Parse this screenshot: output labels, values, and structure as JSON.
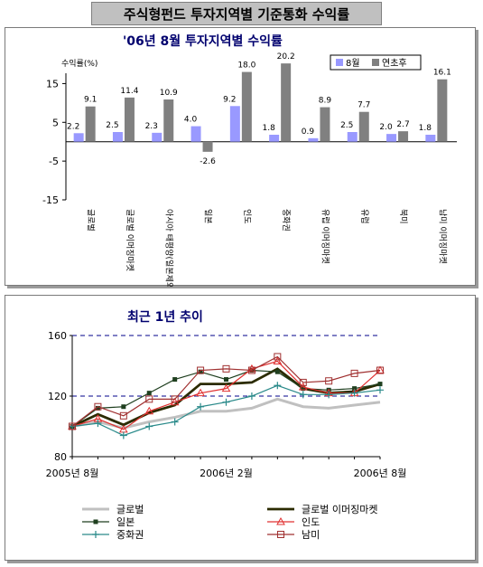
{
  "page_title": "주식형펀드 투자지역별 기준통화 수익률",
  "colors": {
    "aug": "#9999ff",
    "ytd": "#808080",
    "chart2_title": "#00006e",
    "chart1_title": "#00006e"
  },
  "chart_data": [
    {
      "type": "bar",
      "title": "'06년 8월 투자지역별 수익률",
      "ylabel": "수익률(%)",
      "ylim": [
        -15,
        20
      ],
      "yticks": [
        "-15",
        "-5",
        "5",
        "15"
      ],
      "categories": [
        "글로벌",
        "글로벌 이머징마켓",
        "아시아 태평양(일본제외)",
        "일본",
        "인도",
        "중화권",
        "유럽 이머징마켓",
        "유럽",
        "북미",
        "남미 이머징마켓"
      ],
      "series": [
        {
          "name": "8월",
          "color": "#9999ff",
          "values": [
            2.2,
            2.5,
            2.3,
            4.0,
            9.2,
            1.8,
            0.9,
            2.5,
            2.0,
            1.8
          ],
          "labels": [
            "2.2",
            "2.5",
            "2.3",
            "4.0",
            "9.2",
            "1.8",
            "0.9",
            "2.5",
            "2.0",
            "1.8"
          ]
        },
        {
          "name": "연초후",
          "color": "#808080",
          "values": [
            9.1,
            11.4,
            10.9,
            -2.6,
            18.0,
            20.2,
            8.9,
            7.7,
            2.7,
            16.1
          ],
          "labels": [
            "9.1",
            "11.4",
            "10.9",
            "-2.6",
            "18.0",
            "20.2",
            "8.9",
            "7.7",
            "2.7",
            "16.1"
          ]
        }
      ]
    },
    {
      "type": "line",
      "title": "최근 1년 추이",
      "ylim": [
        80,
        160
      ],
      "yticks": [
        "80",
        "120",
        "160"
      ],
      "xtick_labels": [
        "2005년 8월",
        "2006년 2월",
        "2006년 8월"
      ],
      "xtick_positions": [
        0,
        6,
        12
      ],
      "x": [
        0,
        1,
        2,
        3,
        4,
        5,
        6,
        7,
        8,
        9,
        10,
        11,
        12
      ],
      "series": [
        {
          "name": "글로벌",
          "color": "#c0c0c0",
          "marker": "none",
          "values": [
            100,
            103,
            99,
            103,
            106,
            110,
            110,
            112,
            118,
            113,
            112,
            114,
            116
          ]
        },
        {
          "name": "글로벌 이머징마켓",
          "color": "#2b2b00",
          "marker": "none",
          "values": [
            100,
            108,
            101,
            109,
            114,
            128,
            128,
            129,
            138,
            125,
            122,
            123,
            128
          ]
        },
        {
          "name": "일본",
          "color": "#1f3f1f",
          "marker": "square",
          "values": [
            100,
            112,
            113,
            122,
            131,
            136,
            131,
            137,
            136,
            125,
            124,
            125,
            128
          ]
        },
        {
          "name": "인도",
          "color": "#e03030",
          "marker": "triangle",
          "values": [
            100,
            105,
            98,
            110,
            116,
            122,
            125,
            138,
            143,
            126,
            122,
            122,
            137
          ]
        },
        {
          "name": "중화권",
          "color": "#2a8a8a",
          "marker": "plus",
          "values": [
            100,
            102,
            94,
            100,
            103,
            113,
            116,
            120,
            127,
            121,
            121,
            122,
            124
          ]
        },
        {
          "name": "남미",
          "color": "#a03030",
          "marker": "square-open",
          "values": [
            100,
            113,
            107,
            118,
            118,
            137,
            138,
            137,
            146,
            129,
            130,
            135,
            137
          ]
        }
      ]
    }
  ]
}
